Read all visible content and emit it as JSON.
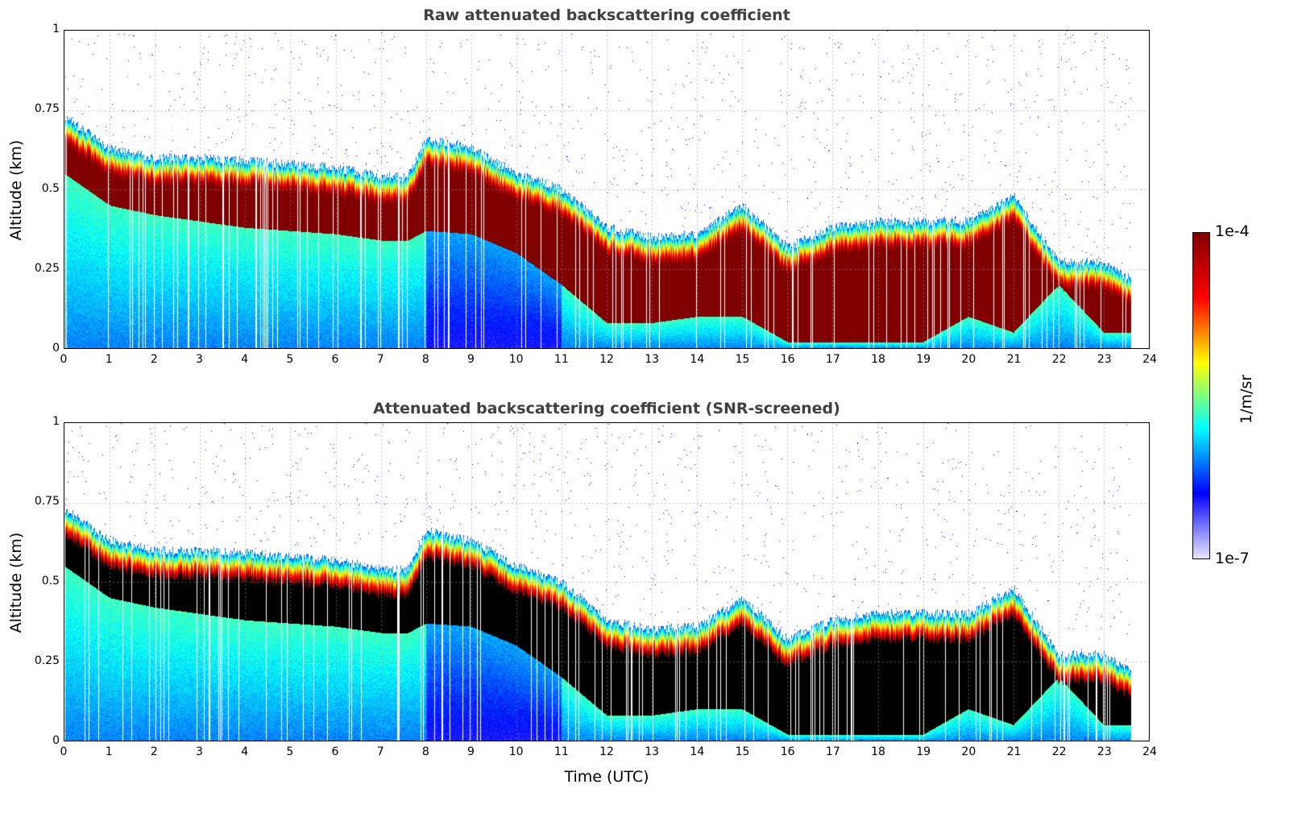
{
  "chart_data": [
    {
      "type": "heatmap",
      "title": "Raw attenuated backscattering coefficient",
      "xlabel": "",
      "ylabel": "Altitude (km)",
      "xlim": [
        0,
        24
      ],
      "ylim": [
        0,
        1
      ],
      "xticks": [
        "0",
        "1",
        "2",
        "3",
        "4",
        "5",
        "6",
        "7",
        "8",
        "9",
        "10",
        "11",
        "12",
        "13",
        "14",
        "15",
        "16",
        "17",
        "18",
        "19",
        "20",
        "21",
        "22",
        "23",
        "24"
      ],
      "yticks": [
        "0",
        "0.25",
        "0.5",
        "0.75",
        "1"
      ],
      "grid": true,
      "saturated_color": "#800000"
    },
    {
      "type": "heatmap",
      "title": "Attenuated backscattering coefficient (SNR-screened)",
      "xlabel": "Time (UTC)",
      "ylabel": "Altitude (km)",
      "xlim": [
        0,
        24
      ],
      "ylim": [
        0,
        1
      ],
      "xticks": [
        "0",
        "1",
        "2",
        "3",
        "4",
        "5",
        "6",
        "7",
        "8",
        "9",
        "10",
        "11",
        "12",
        "13",
        "14",
        "15",
        "16",
        "17",
        "18",
        "19",
        "20",
        "21",
        "22",
        "23",
        "24"
      ],
      "yticks": [
        "0",
        "0.25",
        "0.5",
        "0.75",
        "1"
      ],
      "grid": true,
      "saturated_color": "#000000"
    }
  ],
  "layer": {
    "hours": [
      0,
      1,
      2,
      3,
      4,
      5,
      6,
      7,
      7.6,
      8,
      9,
      10,
      11,
      12,
      13,
      14,
      15,
      16,
      17,
      18,
      19,
      20,
      21,
      22,
      23,
      23.6
    ],
    "top_km": [
      0.73,
      0.63,
      0.6,
      0.6,
      0.59,
      0.58,
      0.57,
      0.54,
      0.54,
      0.66,
      0.63,
      0.55,
      0.5,
      0.38,
      0.35,
      0.36,
      0.45,
      0.32,
      0.38,
      0.4,
      0.4,
      0.4,
      0.48,
      0.27,
      0.27,
      0.22
    ],
    "base_km": [
      0.55,
      0.45,
      0.42,
      0.4,
      0.38,
      0.37,
      0.36,
      0.34,
      0.34,
      0.37,
      0.36,
      0.3,
      0.2,
      0.08,
      0.08,
      0.1,
      0.1,
      0.02,
      0.02,
      0.02,
      0.02,
      0.1,
      0.05,
      0.2,
      0.05,
      0.05
    ],
    "data_end_hour": 23.6
  },
  "colorbar": {
    "label": "1/m/sr",
    "min_label": "1e-7",
    "max_label": "1e-4",
    "min": 1e-07,
    "max": 0.0001,
    "scale": "log",
    "colors": [
      "#e8e8ff",
      "#0000ff",
      "#00ffff",
      "#ffff00",
      "#ff0000",
      "#800000"
    ]
  }
}
